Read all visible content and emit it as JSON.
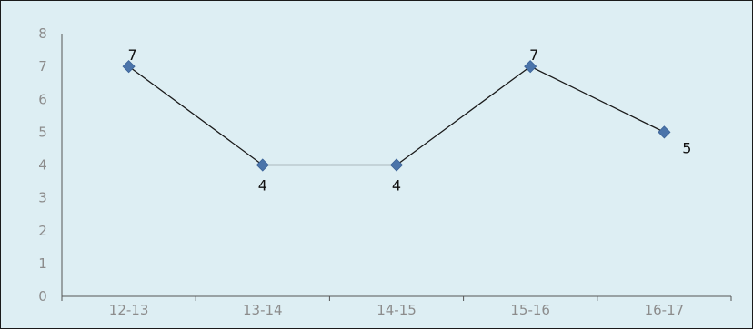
{
  "chart_data": {
    "type": "line",
    "categories": [
      "12-13",
      "13-14",
      "14-15",
      "15-16",
      "16-17"
    ],
    "series": [
      {
        "values": [
          7,
          4,
          4,
          7,
          5
        ]
      }
    ],
    "data_labels": [
      "7",
      "4",
      "4",
      "7",
      "5"
    ],
    "y_ticks": [
      "0",
      "1",
      "2",
      "3",
      "4",
      "5",
      "6",
      "7",
      "8"
    ],
    "ylim": [
      0,
      8
    ],
    "grid": false,
    "legend": "none",
    "line_color": "#1a1a1a",
    "marker_color": "#4a74aa",
    "marker_shape": "diamond",
    "background_color": "#ddeef3"
  }
}
